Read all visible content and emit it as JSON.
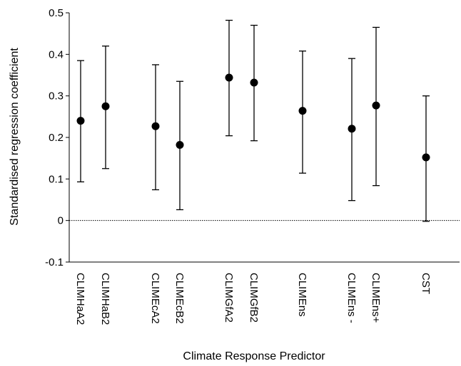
{
  "chart_data": {
    "type": "scatter",
    "title": "",
    "xlabel": "Climate Response Predictor",
    "ylabel": "Standardised regression coefficient",
    "ylim": [
      -0.1,
      0.5
    ],
    "yticks": [
      "0.5",
      "0.4",
      "0.3",
      "0.2",
      "0.1",
      "0",
      "-0.1"
    ],
    "ytick_values": [
      0.5,
      0.4,
      0.3,
      0.2,
      0.1,
      0,
      -0.1
    ],
    "reference_line": {
      "y": 0,
      "style": "dotted"
    },
    "grid": false,
    "legend": "none",
    "marker_color": "#000000",
    "points": [
      {
        "category": "CLIMHaA2",
        "value": 0.24,
        "lower": 0.093,
        "upper": 0.385
      },
      {
        "category": "CLIMHaB2",
        "value": 0.275,
        "lower": 0.125,
        "upper": 0.42
      },
      {
        "category": "CLIMEcA2",
        "value": 0.227,
        "lower": 0.074,
        "upper": 0.375
      },
      {
        "category": "CLIMEcB2",
        "value": 0.182,
        "lower": 0.026,
        "upper": 0.335
      },
      {
        "category": "CLIMGfA2",
        "value": 0.344,
        "lower": 0.204,
        "upper": 0.482
      },
      {
        "category": "CLIMGfB2",
        "value": 0.332,
        "lower": 0.192,
        "upper": 0.47
      },
      {
        "category": "CLIMEns",
        "value": 0.264,
        "lower": 0.114,
        "upper": 0.408
      },
      {
        "category": "CLIMEns -",
        "value": 0.221,
        "lower": 0.048,
        "upper": 0.39
      },
      {
        "category": "CLIMEns+",
        "value": 0.277,
        "lower": 0.084,
        "upper": 0.465
      },
      {
        "category": "CST",
        "value": 0.152,
        "lower": -0.002,
        "upper": 0.3
      }
    ]
  }
}
